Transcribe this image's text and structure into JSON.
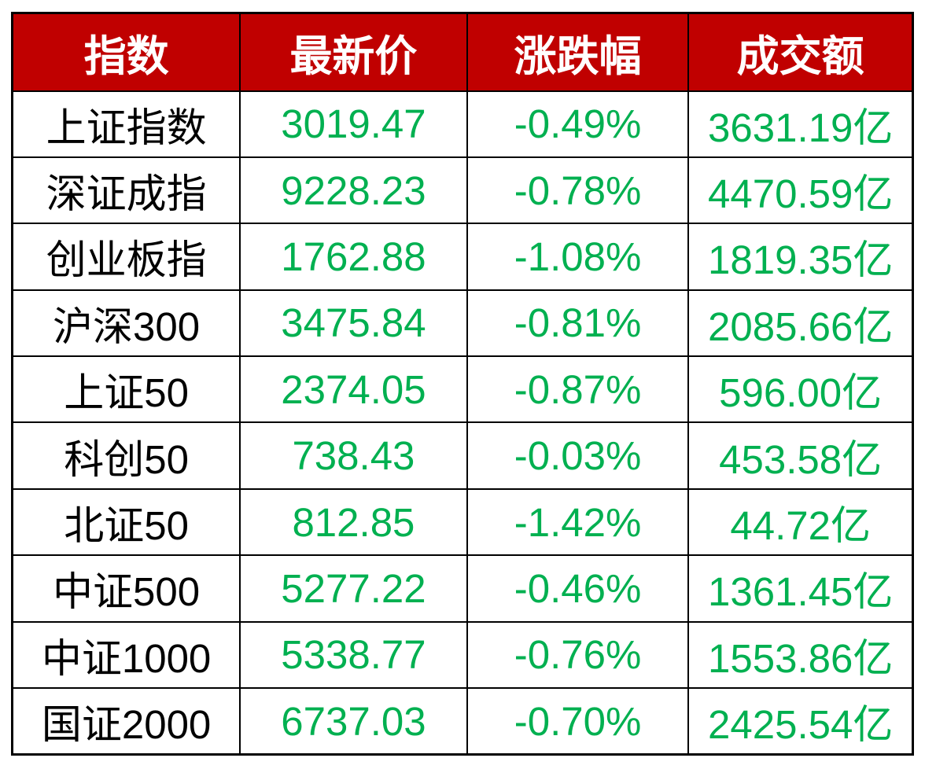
{
  "colors": {
    "header_bg": "#c00000",
    "header_text": "#ffffff",
    "value_text": "#00b050",
    "name_text": "#000000",
    "border": "#000000"
  },
  "table": {
    "columns": [
      "指数",
      "最新价",
      "涨跌幅",
      "成交额"
    ],
    "rows": [
      {
        "name": "上证指数",
        "price": "3019.47",
        "change": "-0.49%",
        "turnover": "3631.19亿"
      },
      {
        "name": "深证成指",
        "price": "9228.23",
        "change": "-0.78%",
        "turnover": "4470.59亿"
      },
      {
        "name": "创业板指",
        "price": "1762.88",
        "change": "-1.08%",
        "turnover": "1819.35亿"
      },
      {
        "name": "沪深300",
        "price": "3475.84",
        "change": "-0.81%",
        "turnover": "2085.66亿"
      },
      {
        "name": "上证50",
        "price": "2374.05",
        "change": "-0.87%",
        "turnover": "596.00亿"
      },
      {
        "name": "科创50",
        "price": "738.43",
        "change": "-0.03%",
        "turnover": "453.58亿"
      },
      {
        "name": "北证50",
        "price": "812.85",
        "change": "-1.42%",
        "turnover": "44.72亿"
      },
      {
        "name": "中证500",
        "price": "5277.22",
        "change": "-0.46%",
        "turnover": "1361.45亿"
      },
      {
        "name": "中证1000",
        "price": "5338.77",
        "change": "-0.76%",
        "turnover": "1553.86亿"
      },
      {
        "name": "国证2000",
        "price": "6737.03",
        "change": "-0.70%",
        "turnover": "2425.54亿"
      }
    ]
  },
  "chart_data": {
    "type": "table",
    "title": "",
    "columns": [
      "指数",
      "最新价",
      "涨跌幅",
      "成交额"
    ],
    "rows": [
      [
        "上证指数",
        3019.47,
        -0.49,
        3631.19
      ],
      [
        "深证成指",
        9228.23,
        -0.78,
        4470.59
      ],
      [
        "创业板指",
        1762.88,
        -1.08,
        1819.35
      ],
      [
        "沪深300",
        3475.84,
        -0.81,
        2085.66
      ],
      [
        "上证50",
        2374.05,
        -0.87,
        596.0
      ],
      [
        "科创50",
        738.43,
        -0.03,
        453.58
      ],
      [
        "北证50",
        812.85,
        -1.42,
        44.72
      ],
      [
        "中证500",
        5277.22,
        -0.46,
        1361.45
      ],
      [
        "中证1000",
        5338.77,
        -0.76,
        1553.86
      ],
      [
        "国证2000",
        6737.03,
        -0.7,
        2425.54
      ]
    ],
    "units": {
      "change": "%",
      "turnover": "亿"
    },
    "notes": "all changes negative, values rendered green"
  }
}
